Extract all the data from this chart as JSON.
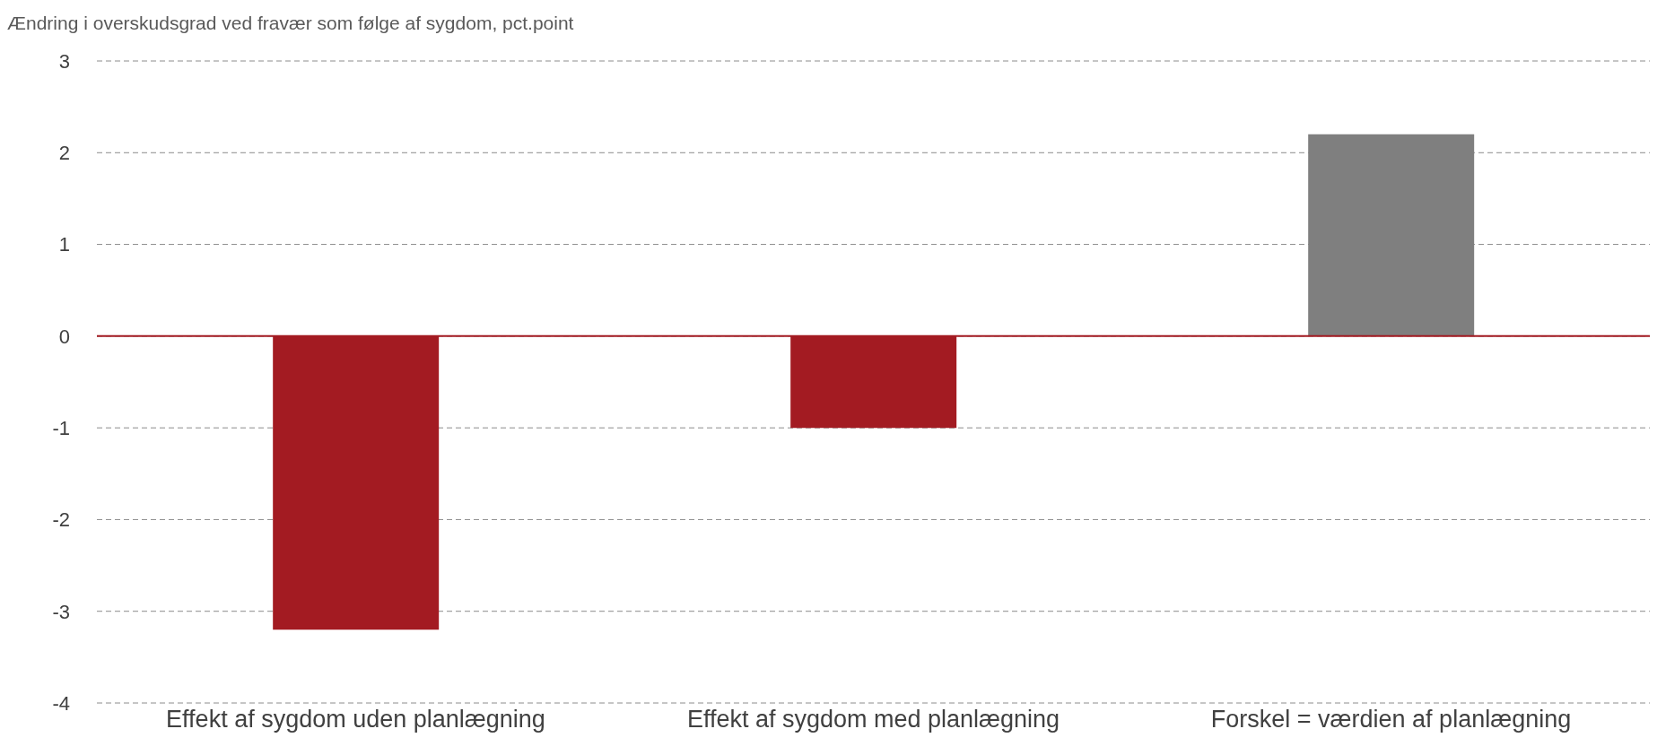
{
  "chart_data": {
    "type": "bar",
    "ylabel": "Ændring i overskudsgrad ved fravær som følge af sygdom, pct.point",
    "categories": [
      "Effekt af sygdom uden planlægning",
      "Effekt af sygdom med planlægning",
      "Forskel = værdien af planlægning"
    ],
    "values": [
      -3.2,
      -1.0,
      2.2
    ],
    "colors": [
      "#a31b22",
      "#a31b22",
      "#7f7f7f"
    ],
    "ylim": [
      -4,
      3
    ],
    "yticks": [
      -4,
      -3,
      -2,
      -1,
      0,
      1,
      2,
      3
    ],
    "grid": "y",
    "ref_lines": [
      {
        "axis": "y",
        "value": 0,
        "color": "#a31b22"
      }
    ]
  }
}
